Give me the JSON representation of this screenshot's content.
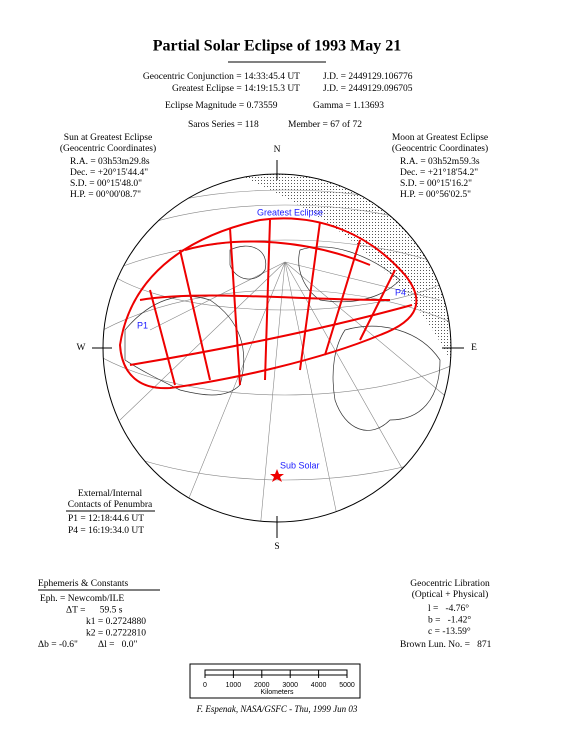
{
  "header": {
    "title": "Partial Solar Eclipse of 1993 May 21",
    "lines": [
      [
        "Geocentric Conjunction = 14:33:45.4 UT",
        "J.D. = 2449129.106776"
      ],
      [
        "Greatest Eclipse = 14:19:15.3 UT",
        "J.D. = 2449129.096705"
      ],
      [
        "Eclipse Magnitude = 0.73559",
        "Gamma = 1.13693"
      ],
      [
        "Saros Series = 118",
        "Member = 67 of 72"
      ]
    ]
  },
  "sun": {
    "heading": [
      "Sun at Greatest Eclipse",
      "(Geocentric Coordinates)"
    ],
    "rows": [
      "R.A. = 03h53m29.8s",
      "Dec. = +20°15'44.4\"",
      "S.D. = 00°15'48.0\"",
      "H.P. = 00°00'08.7\""
    ]
  },
  "moon": {
    "heading": [
      "Moon at Greatest Eclipse",
      "(Geocentric Coordinates)"
    ],
    "rows": [
      "R.A. = 03h52m59.3s",
      "Dec. = +21°18'54.2\"",
      "S.D. = 00°15'16.2\"",
      "H.P. = 00°56'02.5\""
    ]
  },
  "map": {
    "compass": {
      "n": "N",
      "s": "S",
      "e": "E",
      "w": "W"
    },
    "greatest": "Greatest Eclipse",
    "p1": "P1",
    "p4": "P4",
    "sub_solar": "Sub Solar"
  },
  "contacts": {
    "heading": [
      "External/Internal",
      "Contacts of Penumbra"
    ],
    "rows": [
      "P1 = 12:18:44.6 UT",
      "P4 = 16:19:34.0 UT"
    ]
  },
  "ephemeris": {
    "heading": "Ephemeris & Constants",
    "rows": [
      "Eph. = Newcomb/ILE",
      "ΔT =      59.5 s",
      "k1 = 0.2724880",
      "k2 = 0.2722810"
    ],
    "last": [
      "Δb = -0.6\"",
      "Δl =   0.0\""
    ]
  },
  "libration": {
    "heading": [
      "Geocentric Libration",
      "(Optical + Physical)"
    ],
    "rows": [
      "l =   -4.76°",
      "b =   -1.42°",
      "c = -13.59°"
    ],
    "brown": "Brown Lun. No. =   871"
  },
  "scale": {
    "ticks": [
      0,
      1000,
      2000,
      3000,
      4000,
      5000
    ],
    "label": "Kilometers"
  },
  "footer": "F. Espenak, NASA/GSFC - Thu, 1999 Jun 03"
}
